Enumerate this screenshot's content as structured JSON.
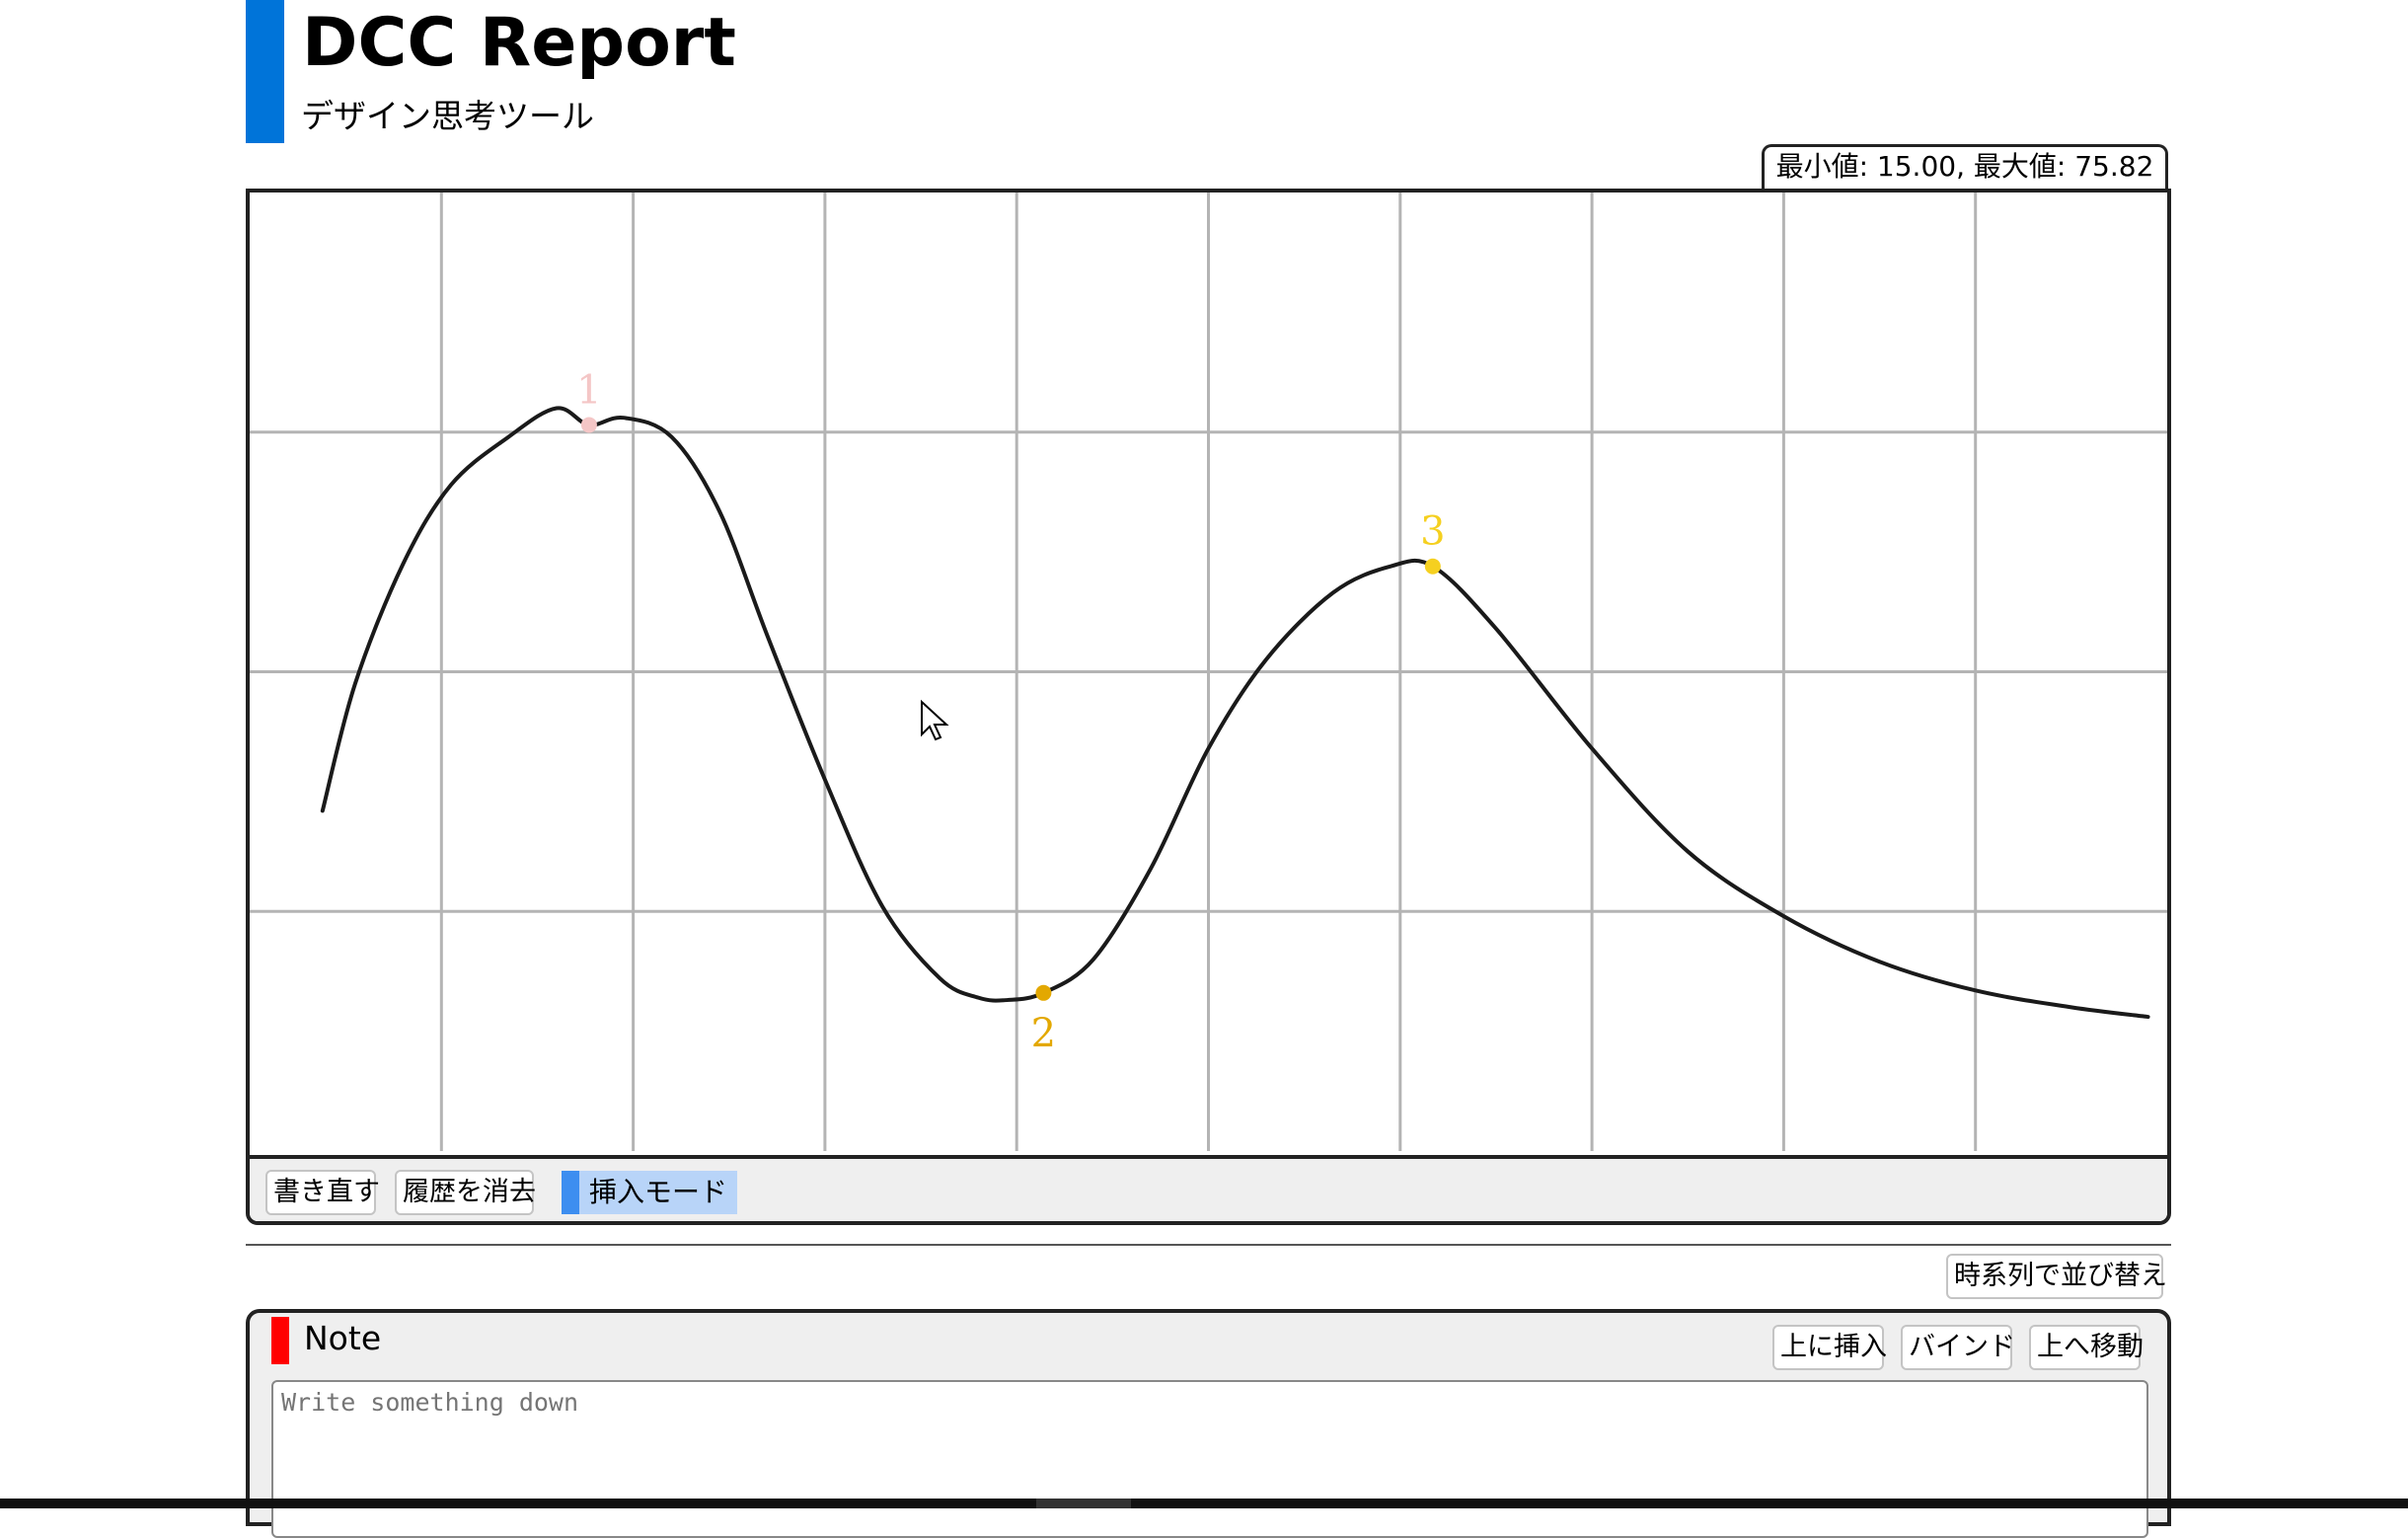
{
  "app": {
    "title": "DCC Report",
    "subtitle": "デザイン思考ツール"
  },
  "range_readout": "最小値: 15.00, 最大値: 75.82",
  "chart_data": {
    "type": "line",
    "title": "",
    "xlabel": "",
    "ylabel": "",
    "xlim": [
      0,
      10
    ],
    "ylim": [
      0,
      4
    ],
    "grid": true,
    "curve": [
      [
        0.38,
        1.42
      ],
      [
        0.55,
        1.95
      ],
      [
        0.8,
        2.45
      ],
      [
        1.05,
        2.78
      ],
      [
        1.35,
        2.98
      ],
      [
        1.6,
        3.1
      ],
      [
        1.77,
        3.03
      ],
      [
        1.95,
        3.06
      ],
      [
        2.2,
        2.98
      ],
      [
        2.45,
        2.67
      ],
      [
        2.7,
        2.15
      ],
      [
        3.0,
        1.55
      ],
      [
        3.3,
        1.02
      ],
      [
        3.6,
        0.72
      ],
      [
        3.8,
        0.64
      ],
      [
        3.95,
        0.63
      ],
      [
        4.14,
        0.66
      ],
      [
        4.4,
        0.8
      ],
      [
        4.7,
        1.18
      ],
      [
        5.0,
        1.68
      ],
      [
        5.3,
        2.05
      ],
      [
        5.65,
        2.33
      ],
      [
        5.95,
        2.44
      ],
      [
        6.17,
        2.44
      ],
      [
        6.5,
        2.18
      ],
      [
        7.0,
        1.68
      ],
      [
        7.5,
        1.25
      ],
      [
        8.0,
        0.98
      ],
      [
        8.5,
        0.79
      ],
      [
        9.0,
        0.67
      ],
      [
        9.5,
        0.6
      ],
      [
        9.9,
        0.56
      ]
    ],
    "markers": [
      {
        "label": "1",
        "x": 1.77,
        "y": 3.03,
        "color": "#f4c6c6",
        "label_pos": "above"
      },
      {
        "label": "2",
        "x": 4.14,
        "y": 0.66,
        "color": "#e3a800",
        "label_pos": "below"
      },
      {
        "label": "3",
        "x": 6.17,
        "y": 2.44,
        "color": "#f5d020",
        "label_pos": "above"
      }
    ]
  },
  "controls": {
    "redraw": "書き直す",
    "clear_history": "履歴を消去",
    "insert_mode": "挿入モード"
  },
  "sort_button": "時系列で並び替え",
  "note": {
    "title": "Note",
    "insert_above": "上に挿入",
    "bind": "バインド",
    "move_up": "上へ移動",
    "placeholder": "Write something down",
    "value": ""
  },
  "colors": {
    "accent": "#0074d9",
    "note_mark": "#ff0000",
    "mode_mark": "#3d8ef0",
    "mode_bg": "#b8d4f8"
  }
}
